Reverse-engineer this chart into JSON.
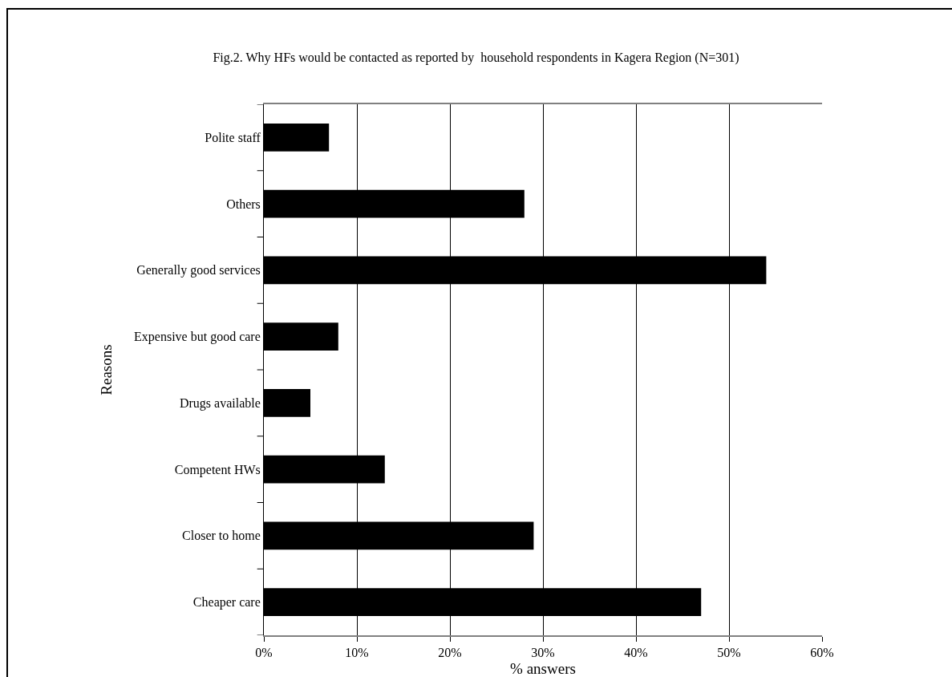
{
  "chart_data": {
    "type": "bar",
    "orientation": "horizontal",
    "title": "Fig.2. Why HFs would be contacted as reported by  household respondents in Kagera Region (N=301)",
    "xlabel": "% answers",
    "ylabel": "Reasons",
    "categories": [
      "Polite staff",
      "Others",
      "Generally good services",
      "Expensive but good care",
      "Drugs available",
      "Competent HWs",
      "Closer to home",
      "Cheaper care"
    ],
    "values": [
      7,
      28,
      54,
      8,
      5,
      13,
      29,
      47
    ],
    "color": "#000000",
    "xlim": [
      0,
      60
    ],
    "xticks": [
      {
        "value": 0,
        "label": "0%"
      },
      {
        "value": 10,
        "label": "10%"
      },
      {
        "value": 20,
        "label": "20%"
      },
      {
        "value": 30,
        "label": "30%"
      },
      {
        "value": 40,
        "label": "40%"
      },
      {
        "value": 50,
        "label": "50%"
      },
      {
        "value": 60,
        "label": "60%"
      }
    ],
    "grid": "x"
  }
}
